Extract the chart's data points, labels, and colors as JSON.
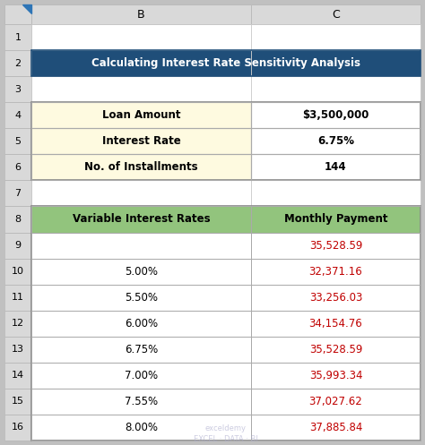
{
  "title": "Calculating Interest Rate Sensitivity Analysis",
  "title_bg": "#1F4E79",
  "title_fg": "#FFFFFF",
  "info_table": {
    "labels": [
      "Loan Amount",
      "Interest Rate",
      "No. of Installments"
    ],
    "values": [
      "$3,500,000",
      "6.75%",
      "144"
    ],
    "label_bg": "#FEFAE0",
    "value_bg": "#FFFFFF",
    "border_color": "#AAAAAA"
  },
  "sensitivity_table": {
    "col1_header": "Variable Interest Rates",
    "col2_header": "Monthly Payment",
    "header_bg": "#92C47D",
    "header_fg": "#000000",
    "rates": [
      "",
      "5.00%",
      "5.50%",
      "6.00%",
      "6.75%",
      "7.00%",
      "7.55%",
      "8.00%"
    ],
    "payments": [
      "35,528.59",
      "32,371.16",
      "33,256.03",
      "34,154.76",
      "35,528.59",
      "35,993.34",
      "37,027.62",
      "37,885.84"
    ],
    "payment_color": "#C00000",
    "border_color": "#AAAAAA"
  },
  "col_header_bg": "#D9D9D9",
  "row_header_bg": "#D9D9D9",
  "bg_color": "#C0C0C0",
  "grid_bg": "#FFFFFF",
  "num_rows": 16,
  "watermark_color": "#AAAACC",
  "watermark_alpha": 0.6
}
